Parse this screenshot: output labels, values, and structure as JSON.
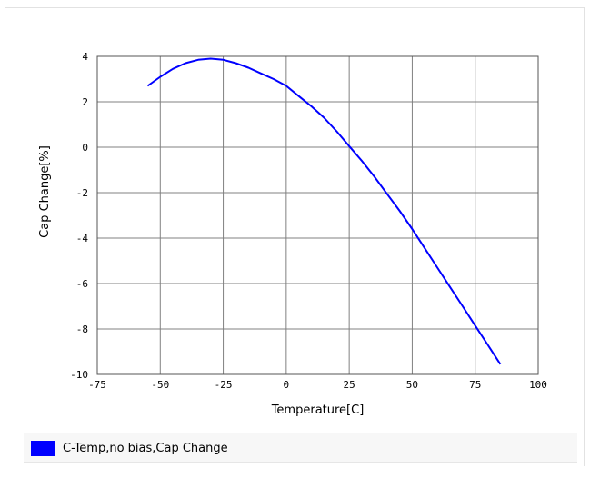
{
  "chart_data": {
    "type": "line",
    "title": "",
    "xlabel": "Temperature[C]",
    "ylabel": "Cap Change[%]",
    "xlim": [
      -75,
      100
    ],
    "ylim": [
      -10,
      4
    ],
    "x_ticks": [
      -75,
      -50,
      -25,
      0,
      25,
      50,
      75,
      100
    ],
    "y_ticks": [
      4,
      2,
      0,
      -2,
      -4,
      -6,
      -8,
      -10
    ],
    "x_tick_labels": [
      "-75",
      "-50",
      "-25",
      "0",
      "25",
      "50",
      "75",
      "100"
    ],
    "y_tick_labels": [
      "4",
      "2",
      "0",
      "-2",
      "-4",
      "-6",
      "-8",
      "-10"
    ],
    "grid": true,
    "legend_position": "bottom",
    "series": [
      {
        "name": "C-Temp,no bias,Cap Change",
        "color": "#0000ff",
        "x": [
          -55,
          -50,
          -45,
          -40,
          -35,
          -30,
          -25,
          -20,
          -15,
          -10,
          -5,
          0,
          5,
          10,
          15,
          20,
          25,
          30,
          35,
          40,
          45,
          50,
          55,
          60,
          65,
          70,
          75,
          80,
          85
        ],
        "y": [
          2.7,
          3.1,
          3.45,
          3.7,
          3.85,
          3.9,
          3.85,
          3.7,
          3.5,
          3.25,
          3.0,
          2.7,
          2.25,
          1.8,
          1.3,
          0.7,
          0.05,
          -0.6,
          -1.3,
          -2.05,
          -2.8,
          -3.6,
          -4.45,
          -5.3,
          -6.15,
          -7.0,
          -7.85,
          -8.7,
          -9.55
        ]
      }
    ]
  },
  "legend": {
    "label": "C-Temp,no bias,Cap Change",
    "color": "#0000ff"
  }
}
